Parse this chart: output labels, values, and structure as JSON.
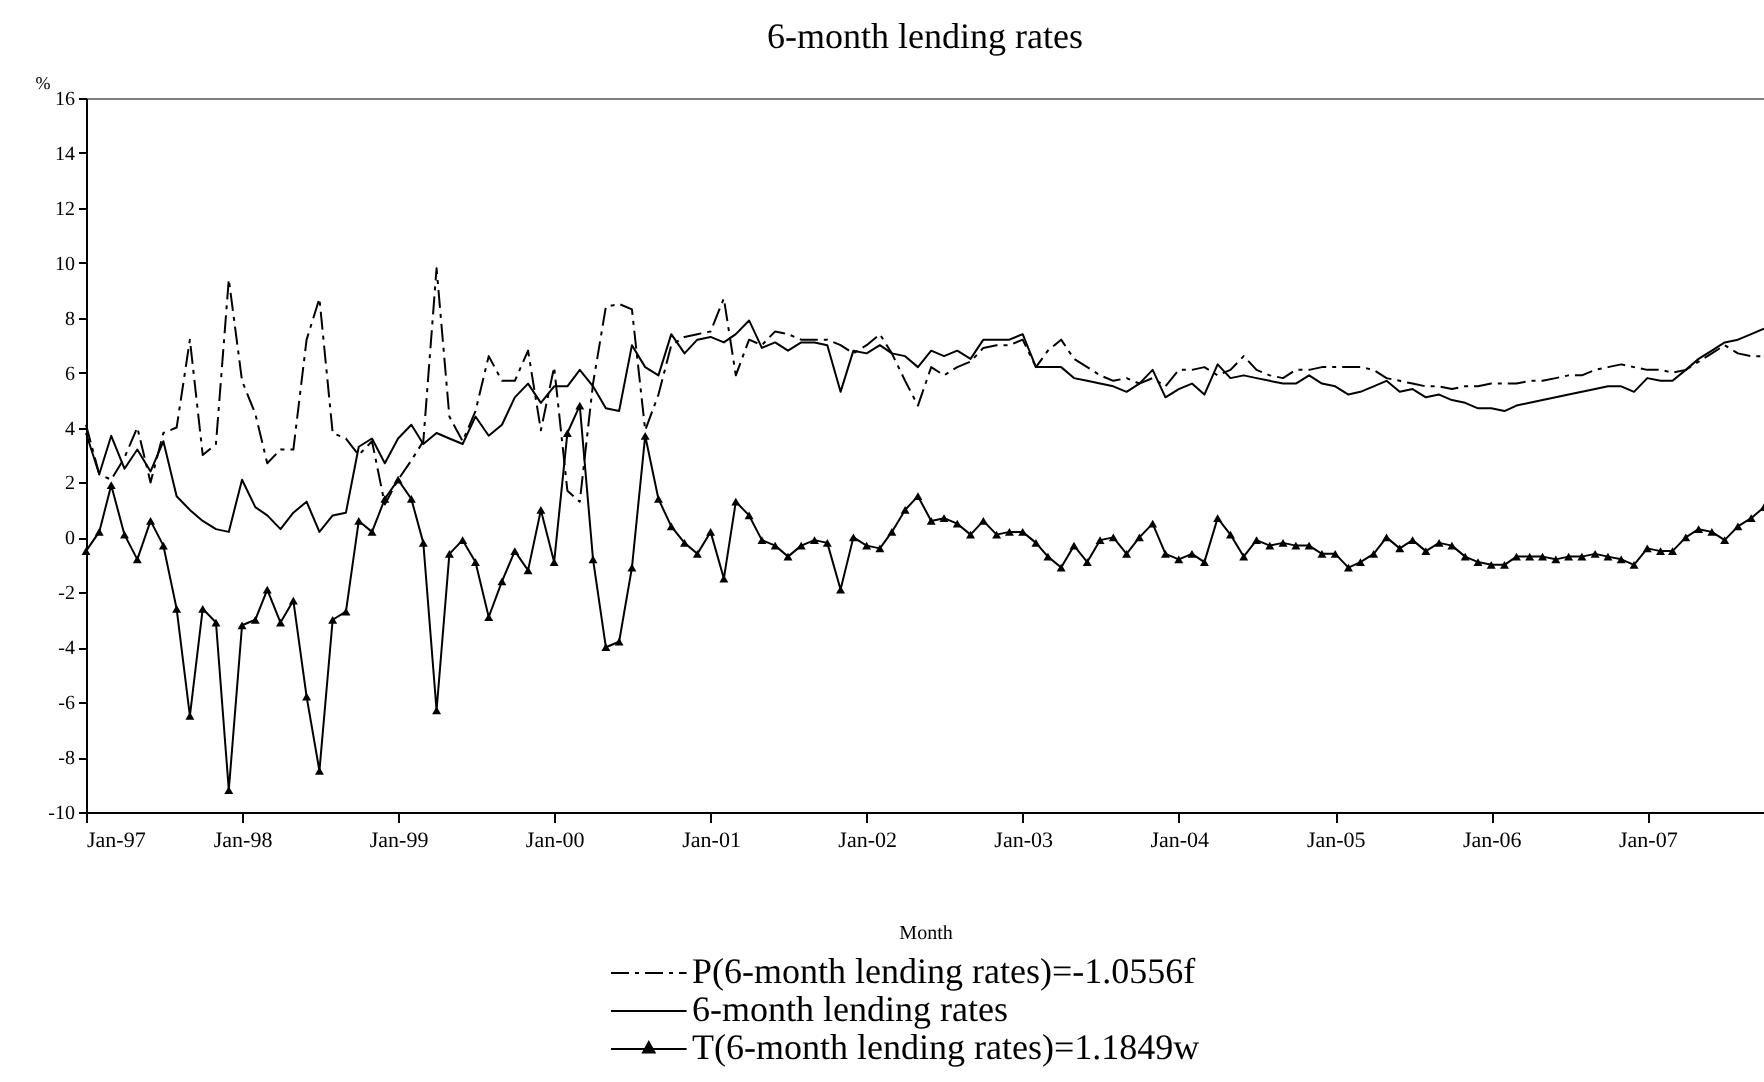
{
  "chart_data": {
    "type": "line",
    "title": "6-month lending rates",
    "xlabel": "Month",
    "ylabel": "%",
    "x": [
      "1997-01",
      "1997-02",
      "1997-03",
      "1997-04",
      "1997-05",
      "1997-06",
      "1997-07",
      "1997-08",
      "1997-09",
      "1997-10",
      "1997-11",
      "1997-12",
      "1998-01",
      "1998-02",
      "1998-03",
      "1998-04",
      "1998-05",
      "1998-06",
      "1998-07",
      "1998-08",
      "1998-09",
      "1998-10",
      "1998-11",
      "1998-12",
      "1999-01",
      "1999-02",
      "1999-03",
      "1999-04",
      "1999-05",
      "1999-06",
      "1999-07",
      "1999-08",
      "1999-09",
      "1999-10",
      "1999-11",
      "1999-12",
      "2000-01",
      "2000-02",
      "2000-03",
      "2000-04",
      "2000-05",
      "2000-06",
      "2000-07",
      "2000-08",
      "2000-09",
      "2000-10",
      "2000-11",
      "2000-12",
      "2001-01",
      "2001-02",
      "2001-03",
      "2001-04",
      "2001-05",
      "2001-06",
      "2001-07",
      "2001-08",
      "2001-09",
      "2001-10",
      "2001-11",
      "2001-12",
      "2002-01",
      "2002-02",
      "2002-03",
      "2002-04",
      "2002-05",
      "2002-06",
      "2002-07",
      "2002-08",
      "2002-09",
      "2002-10",
      "2002-11",
      "2002-12",
      "2003-01",
      "2003-02",
      "2003-03",
      "2003-04",
      "2003-05",
      "2003-06",
      "2003-07",
      "2003-08",
      "2003-09",
      "2003-10",
      "2003-11",
      "2003-12",
      "2004-01",
      "2004-02",
      "2004-03",
      "2004-04",
      "2004-05",
      "2004-06",
      "2004-07",
      "2004-08",
      "2004-09",
      "2004-10",
      "2004-11",
      "2004-12",
      "2005-01",
      "2005-02",
      "2005-03",
      "2005-04",
      "2005-05",
      "2005-06",
      "2005-07",
      "2005-08",
      "2005-09",
      "2005-10",
      "2005-11",
      "2005-12",
      "2006-01",
      "2006-02",
      "2006-03",
      "2006-04",
      "2006-05",
      "2006-06",
      "2006-07",
      "2006-08",
      "2006-09",
      "2006-10",
      "2006-11",
      "2006-12",
      "2007-01",
      "2007-02",
      "2007-03",
      "2007-04",
      "2007-05",
      "2007-06",
      "2007-07",
      "2007-08",
      "2007-09",
      "2007-10"
    ],
    "series": [
      {
        "name": "P(6-month lending rates)=-1.0556f",
        "color": "#000000",
        "line_style": "dashdot",
        "values": [
          4.1,
          2.3,
          2.1,
          2.9,
          4.0,
          2.0,
          3.8,
          4.0,
          7.2,
          3.0,
          3.4,
          9.4,
          5.7,
          4.5,
          2.7,
          3.2,
          3.2,
          7.2,
          8.7,
          3.8,
          3.6,
          3.0,
          3.5,
          1.2,
          2.1,
          2.8,
          3.5,
          9.8,
          4.4,
          3.5,
          4.6,
          6.6,
          5.7,
          5.7,
          6.8,
          3.9,
          6.2,
          1.7,
          1.3,
          5.6,
          8.4,
          8.5,
          8.3,
          3.9,
          5.2,
          7.0,
          7.3,
          7.4,
          7.5,
          8.7,
          5.9,
          7.2,
          7.0,
          7.5,
          7.4,
          7.2,
          7.2,
          7.2,
          7.0,
          6.7,
          7.0,
          7.4,
          6.7,
          5.7,
          4.8,
          6.2,
          5.9,
          6.2,
          6.4,
          6.9,
          7.0,
          7.0,
          7.2,
          6.2,
          6.8,
          7.2,
          6.5,
          6.2,
          5.9,
          5.7,
          5.8,
          5.6,
          5.8,
          5.5,
          6.1,
          6.1,
          6.2,
          5.9,
          6.1,
          6.6,
          6.1,
          5.9,
          5.8,
          6.1,
          6.1,
          6.2,
          6.2,
          6.2,
          6.2,
          6.1,
          5.8,
          5.7,
          5.6,
          5.5,
          5.5,
          5.4,
          5.5,
          5.5,
          5.6,
          5.6,
          5.6,
          5.7,
          5.7,
          5.8,
          5.9,
          5.9,
          6.1,
          6.2,
          6.3,
          6.2,
          6.1,
          6.1,
          6.0,
          6.1,
          6.4,
          6.7,
          7.0,
          6.7,
          6.6,
          6.6
        ]
      },
      {
        "name": "6-month lending rates",
        "color": "#000000",
        "line_style": "solid",
        "values": [
          3.8,
          2.3,
          3.7,
          2.5,
          3.2,
          2.4,
          3.5,
          1.5,
          1.0,
          0.6,
          0.3,
          0.2,
          2.1,
          1.1,
          0.8,
          0.3,
          0.9,
          1.3,
          0.2,
          0.8,
          0.9,
          3.3,
          3.6,
          2.7,
          3.6,
          4.1,
          3.4,
          3.8,
          3.6,
          3.4,
          4.4,
          3.7,
          4.1,
          5.1,
          5.6,
          4.9,
          5.5,
          5.5,
          6.1,
          5.5,
          4.7,
          4.6,
          7.0,
          6.2,
          5.9,
          7.4,
          6.7,
          7.2,
          7.3,
          7.1,
          7.4,
          7.9,
          6.9,
          7.1,
          6.8,
          7.1,
          7.1,
          7.0,
          5.3,
          6.8,
          6.7,
          7.0,
          6.7,
          6.6,
          6.2,
          6.8,
          6.6,
          6.8,
          6.5,
          7.2,
          7.2,
          7.2,
          7.4,
          6.2,
          6.2,
          6.2,
          5.8,
          5.7,
          5.6,
          5.5,
          5.3,
          5.6,
          6.1,
          5.1,
          5.4,
          5.6,
          5.2,
          6.3,
          5.8,
          5.9,
          5.8,
          5.7,
          5.6,
          5.6,
          5.9,
          5.6,
          5.5,
          5.2,
          5.3,
          5.5,
          5.7,
          5.3,
          5.4,
          5.1,
          5.2,
          5.0,
          4.9,
          4.7,
          4.7,
          4.6,
          4.8,
          4.9,
          5.0,
          5.1,
          5.2,
          5.3,
          5.4,
          5.5,
          5.5,
          5.3,
          5.8,
          5.7,
          5.7,
          6.1,
          6.5,
          6.8,
          7.1,
          7.2,
          7.4,
          7.6
        ]
      },
      {
        "name": "T(6-month lending rates)=1.1849w",
        "color": "#000000",
        "line_style": "solid",
        "marker": "triangle",
        "values": [
          -0.5,
          0.2,
          1.9,
          0.1,
          -0.8,
          0.6,
          -0.3,
          -2.6,
          -6.5,
          -2.6,
          -3.1,
          -9.2,
          -3.2,
          -3.0,
          -1.9,
          -3.1,
          -2.3,
          -5.8,
          -8.5,
          -3.0,
          -2.7,
          0.6,
          0.2,
          1.4,
          2.1,
          1.4,
          -0.2,
          -6.3,
          -0.6,
          -0.1,
          -0.9,
          -2.9,
          -1.6,
          -0.5,
          -1.2,
          1.0,
          -0.9,
          3.8,
          4.8,
          -0.8,
          -4.0,
          -3.8,
          -1.1,
          3.7,
          1.4,
          0.4,
          -0.2,
          -0.6,
          0.2,
          -1.5,
          1.3,
          0.8,
          -0.1,
          -0.3,
          -0.7,
          -0.3,
          -0.1,
          -0.2,
          -1.9,
          0.0,
          -0.3,
          -0.4,
          0.2,
          1.0,
          1.5,
          0.6,
          0.7,
          0.5,
          0.1,
          0.6,
          0.1,
          0.2,
          0.2,
          -0.2,
          -0.7,
          -1.1,
          -0.3,
          -0.9,
          -0.1,
          0.0,
          -0.6,
          0.0,
          0.5,
          -0.6,
          -0.8,
          -0.6,
          -0.9,
          0.7,
          0.1,
          -0.7,
          -0.1,
          -0.3,
          -0.2,
          -0.3,
          -0.3,
          -0.6,
          -0.6,
          -1.1,
          -0.9,
          -0.6,
          0.0,
          -0.4,
          -0.1,
          -0.5,
          -0.2,
          -0.3,
          -0.7,
          -0.9,
          -1.0,
          -1.0,
          -0.7,
          -0.7,
          -0.7,
          -0.8,
          -0.7,
          -0.7,
          -0.6,
          -0.7,
          -0.8,
          -1.0,
          -0.4,
          -0.5,
          -0.5,
          0.0,
          0.3,
          0.2,
          -0.1,
          0.4,
          0.7,
          1.1
        ]
      }
    ],
    "xlim": [
      "1997-01",
      "2007-10"
    ],
    "xticks": [
      {
        "value": "1997-01",
        "label": "Jan-97"
      },
      {
        "value": "1998-01",
        "label": "Jan-98"
      },
      {
        "value": "1999-01",
        "label": "Jan-99"
      },
      {
        "value": "2000-01",
        "label": "Jan-00"
      },
      {
        "value": "2001-01",
        "label": "Jan-01"
      },
      {
        "value": "2002-01",
        "label": "Jan-02"
      },
      {
        "value": "2003-01",
        "label": "Jan-03"
      },
      {
        "value": "2004-01",
        "label": "Jan-04"
      },
      {
        "value": "2005-01",
        "label": "Jan-05"
      },
      {
        "value": "2006-01",
        "label": "Jan-06"
      },
      {
        "value": "2007-01",
        "label": "Jan-07"
      }
    ],
    "ylim": [
      -10,
      16
    ],
    "yticks": [
      -10,
      -8,
      -6,
      -4,
      -2,
      0,
      2,
      4,
      6,
      8,
      10,
      12,
      14,
      16
    ],
    "grid": false,
    "legend": "bottom"
  }
}
